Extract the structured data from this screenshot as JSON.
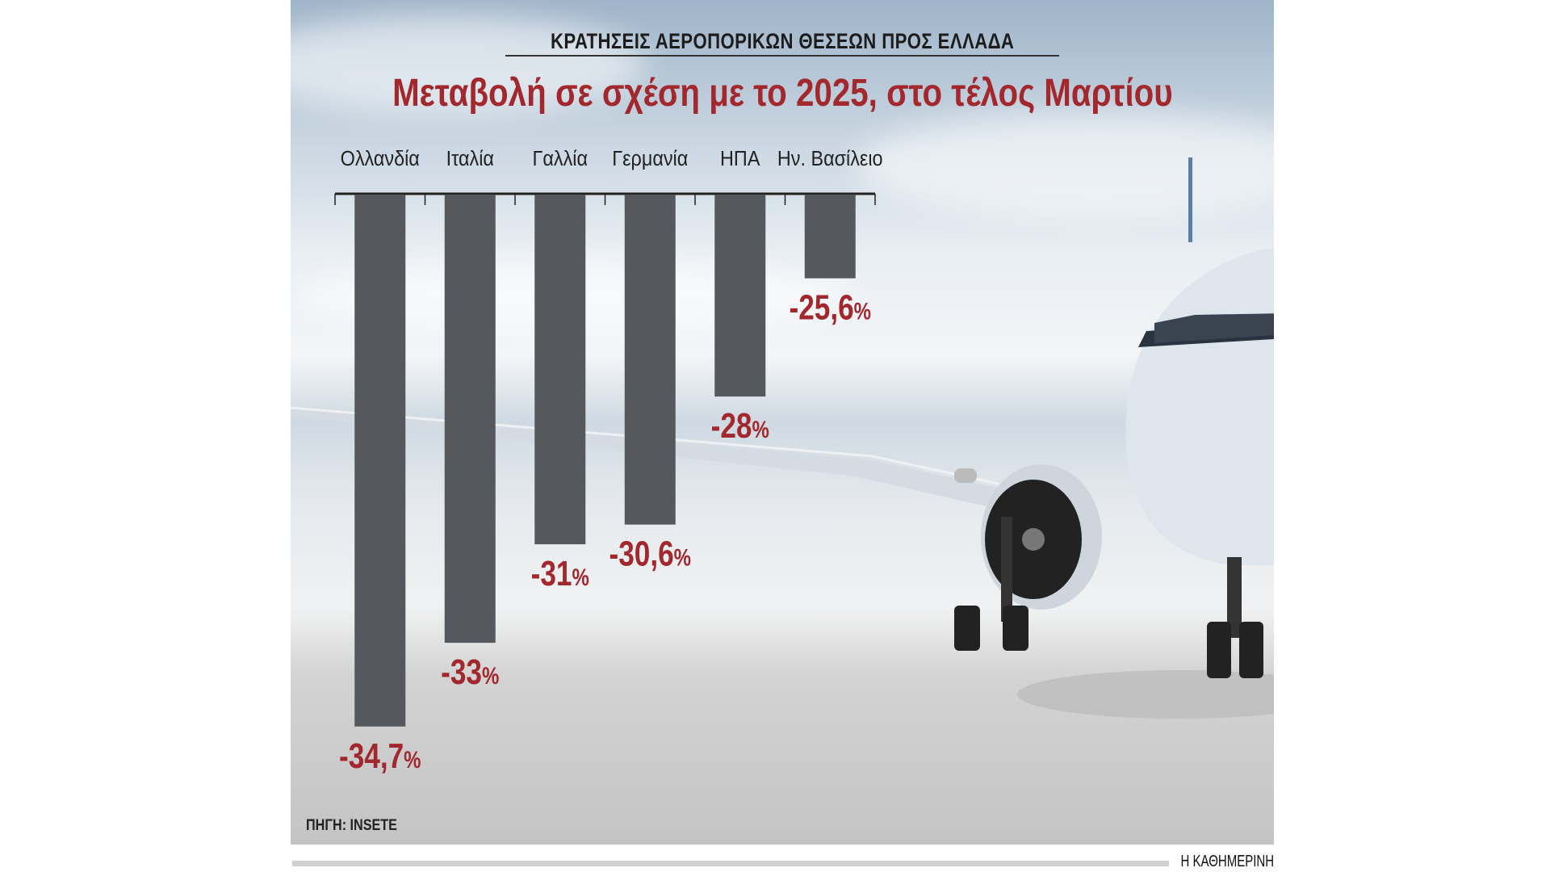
{
  "header": {
    "kicker": "ΚΡΑΤΗΣΕΙΣ ΑΕΡΟΠΟΡΙΚΩΝ ΘΕΣΕΩΝ ΠΡΟΣ ΕΛΛΑΔΑ",
    "title": "Μεταβολή σε σχέση με το 2025, στο τέλος Μαρτίου"
  },
  "chart_data": {
    "type": "bar",
    "title": "Μεταβολή σε σχέση με το 2025, στο τέλος Μαρτίου",
    "xlabel": "",
    "ylabel": "",
    "unit": "%",
    "categories": [
      "Ολλανδία",
      "Ιταλία",
      "Γαλλία",
      "Γερμανία",
      "ΗΠΑ",
      "Ην. Βασίλειο"
    ],
    "values": [
      -34.7,
      -33,
      -31,
      -30.6,
      -28,
      -25.6
    ],
    "value_labels": [
      "-34,7",
      "-33",
      "-31",
      "-30,6",
      "-28",
      "-25,6"
    ],
    "ylim": [
      -34.7,
      -23.9
    ],
    "bar_color": "#55585c",
    "label_color": "#a3282e"
  },
  "footer": {
    "source": "ΠΗΓΗ: INSETE",
    "brand": "Η ΚΑΘΗΜΕΡΙΝΗ"
  }
}
